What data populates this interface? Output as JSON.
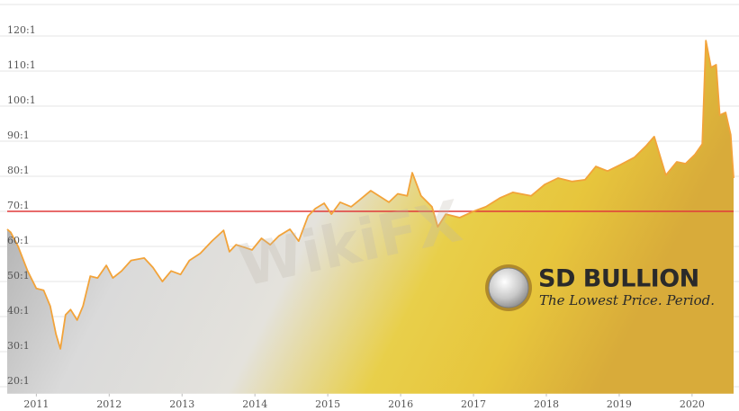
{
  "chart_data": {
    "type": "area",
    "x": [
      2010.6,
      2010.65,
      2010.75,
      2010.88,
      2011.0,
      2011.1,
      2011.19,
      2011.27,
      2011.33,
      2011.4,
      2011.47,
      2011.56,
      2011.64,
      2011.74,
      2011.84,
      2011.96,
      2012.05,
      2012.17,
      2012.3,
      2012.48,
      2012.6,
      2012.73,
      2012.85,
      2012.98,
      2013.1,
      2013.25,
      2013.41,
      2013.57,
      2013.65,
      2013.74,
      2013.86,
      2013.96,
      2014.09,
      2014.21,
      2014.33,
      2014.48,
      2014.6,
      2014.73,
      2014.83,
      2014.95,
      2015.05,
      2015.17,
      2015.32,
      2015.44,
      2015.59,
      2015.84,
      2015.96,
      2016.09,
      2016.16,
      2016.16,
      2016.28,
      2016.43,
      2016.51,
      2016.62,
      2016.81,
      2017.0,
      2017.17,
      2017.36,
      2017.54,
      2017.79,
      2017.98,
      2018.16,
      2018.35,
      2018.53,
      2018.68,
      2018.84,
      2019.02,
      2019.21,
      2019.37,
      2019.48,
      2019.64,
      2019.79,
      2019.91,
      2020.04,
      2020.14,
      2020.19,
      2020.26,
      2020.33,
      2020.38,
      2020.46,
      2020.53,
      2020.57
    ],
    "values": [
      64.9,
      64,
      60,
      53,
      48,
      47.5,
      43,
      35,
      30.8,
      40.5,
      42,
      39,
      43,
      51.5,
      51,
      54.6,
      51,
      53,
      56,
      56.7,
      54,
      50,
      53,
      52,
      56,
      58,
      61.5,
      64.6,
      58.5,
      60.5,
      59.7,
      59,
      62.3,
      60.5,
      63,
      64.9,
      61.5,
      68.7,
      70.8,
      72.3,
      69.2,
      72.6,
      71.3,
      73.3,
      75.9,
      72.6,
      75,
      74.4,
      81,
      81,
      74.4,
      71.3,
      65.6,
      69.2,
      68.2,
      70,
      71.3,
      73.8,
      75.4,
      74.4,
      77.7,
      79.5,
      78.5,
      79,
      82.8,
      81.5,
      83.3,
      85.4,
      88.7,
      91.3,
      80.3,
      84.1,
      83.6,
      86.2,
      89.2,
      118.7,
      111,
      111.8,
      97.4,
      98.2,
      91.8,
      79.5
    ],
    "color": "#f2a33a",
    "xlim": [
      2010.6,
      2020.57
    ],
    "ylim": [
      18,
      128
    ],
    "xticks": [
      2011,
      2012,
      2013,
      2014,
      2015,
      2016,
      2017,
      2018,
      2019,
      2020
    ],
    "yticks": [
      {
        "value": 20,
        "label": "20:1"
      },
      {
        "value": 30,
        "label": "30:1"
      },
      {
        "value": 40,
        "label": "40:1"
      },
      {
        "value": 50,
        "label": "50:1"
      },
      {
        "value": 60,
        "label": "60:1"
      },
      {
        "value": 70,
        "label": "70:1"
      },
      {
        "value": 80,
        "label": "80:1"
      },
      {
        "value": 90,
        "label": "90:1"
      },
      {
        "value": 100,
        "label": "100:1"
      },
      {
        "value": 110,
        "label": "110:1"
      },
      {
        "value": 120,
        "label": "120:1"
      }
    ],
    "grid": true,
    "reference_line": {
      "value": 70,
      "color": "#e03a3a"
    },
    "logo": {
      "name": "SD BULLION",
      "tagline": "The Lowest Price. Period."
    },
    "watermark": "WikiFX"
  }
}
